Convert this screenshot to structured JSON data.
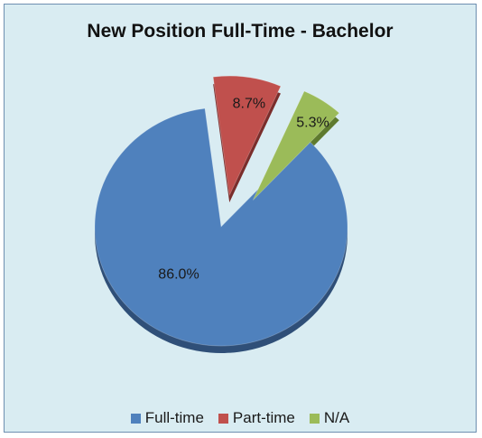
{
  "chart_data": {
    "type": "pie",
    "title": "New Position Full-Time - Bachelor",
    "slices": [
      {
        "label": "Full-time",
        "value": 86.0,
        "display": "86.0%",
        "color": "#4f81bd",
        "shade": "#2f4f78",
        "exploded": false
      },
      {
        "label": "Part-time",
        "value": 8.7,
        "display": "8.7%",
        "color": "#c0504d",
        "shade": "#7a2d2b",
        "exploded": true
      },
      {
        "label": "N/A",
        "value": 5.3,
        "display": "5.3%",
        "color": "#9bbb59",
        "shade": "#5e7a2e",
        "exploded": true
      }
    ],
    "legend_position": "bottom",
    "style": "3d-exploded"
  },
  "background_color": "#d9ecf2"
}
